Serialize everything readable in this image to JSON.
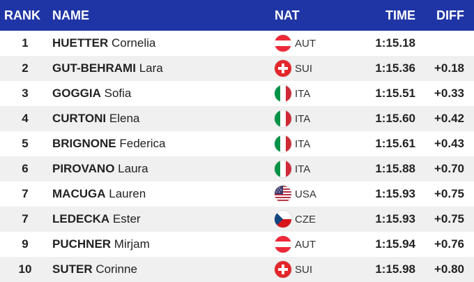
{
  "colors": {
    "header_bg": "#1f35a6",
    "header_text": "#ffffff",
    "alt_row_bg": "#f0f0f0"
  },
  "header": {
    "rank": "RANK",
    "name": "NAME",
    "nat": "NAT",
    "time": "TIME",
    "diff": "DIFF"
  },
  "rows": [
    {
      "rank": "1",
      "surname": "HUETTER",
      "given": "Cornelia",
      "nat": "AUT",
      "flag": "austria-flag-icon",
      "time": "1:15.18",
      "diff": ""
    },
    {
      "rank": "2",
      "surname": "GUT-BEHRAMI",
      "given": "Lara",
      "nat": "SUI",
      "flag": "switzerland-flag-icon",
      "time": "1:15.36",
      "diff": "+0.18"
    },
    {
      "rank": "3",
      "surname": "GOGGIA",
      "given": "Sofia",
      "nat": "ITA",
      "flag": "italy-flag-icon",
      "time": "1:15.51",
      "diff": "+0.33"
    },
    {
      "rank": "4",
      "surname": "CURTONI",
      "given": "Elena",
      "nat": "ITA",
      "flag": "italy-flag-icon",
      "time": "1:15.60",
      "diff": "+0.42"
    },
    {
      "rank": "5",
      "surname": "BRIGNONE",
      "given": "Federica",
      "nat": "ITA",
      "flag": "italy-flag-icon",
      "time": "1:15.61",
      "diff": "+0.43"
    },
    {
      "rank": "6",
      "surname": "PIROVANO",
      "given": "Laura",
      "nat": "ITA",
      "flag": "italy-flag-icon",
      "time": "1:15.88",
      "diff": "+0.70"
    },
    {
      "rank": "7",
      "surname": "MACUGA",
      "given": "Lauren",
      "nat": "USA",
      "flag": "usa-flag-icon",
      "time": "1:15.93",
      "diff": "+0.75"
    },
    {
      "rank": "7",
      "surname": "LEDECKA",
      "given": "Ester",
      "nat": "CZE",
      "flag": "czech-flag-icon",
      "time": "1:15.93",
      "diff": "+0.75"
    },
    {
      "rank": "9",
      "surname": "PUCHNER",
      "given": "Mirjam",
      "nat": "AUT",
      "flag": "austria-flag-icon",
      "time": "1:15.94",
      "diff": "+0.76"
    },
    {
      "rank": "10",
      "surname": "SUTER",
      "given": "Corinne",
      "nat": "SUI",
      "flag": "switzerland-flag-icon",
      "time": "1:15.98",
      "diff": "+0.80"
    }
  ]
}
